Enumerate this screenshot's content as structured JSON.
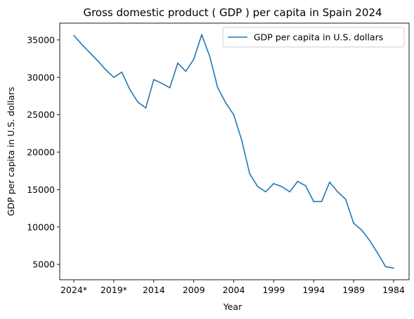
{
  "chart_data": {
    "type": "line",
    "title": "Gross domestic product ( GDP ) per capita in Spain 2024",
    "xlabel": "Year",
    "ylabel": "GDP per capita in U.S. dollars",
    "x": [
      "2024*",
      "2023*",
      "2022*",
      "2021*",
      "2020*",
      "2019*",
      "2018",
      "2017",
      "2016",
      "2015",
      "2014",
      "2013",
      "2012",
      "2011",
      "2010",
      "2009",
      "2008",
      "2007",
      "2006",
      "2005",
      "2004",
      "2003",
      "2002",
      "2001",
      "2000",
      "1999",
      "1998",
      "1997",
      "1996",
      "1995",
      "1994",
      "1993",
      "1992",
      "1991",
      "1990",
      "1989",
      "1988",
      "1987",
      "1986",
      "1985",
      "1984"
    ],
    "series": [
      {
        "name": "GDP per capita in U.S. dollars",
        "color": "#1f77b4",
        "values": [
          35600,
          34400,
          33300,
          32200,
          31000,
          30000,
          30700,
          28400,
          26700,
          25900,
          29700,
          29200,
          28600,
          31900,
          30800,
          32400,
          35700,
          32800,
          28600,
          26600,
          25000,
          21600,
          17100,
          15400,
          14700,
          15800,
          15400,
          14700,
          16100,
          15500,
          13400,
          13400,
          16000,
          14700,
          13700,
          10500,
          9600,
          8200,
          6500,
          4700,
          4500
        ]
      }
    ],
    "xticks": [
      "2024*",
      "2019*",
      "2014",
      "2009",
      "2004",
      "1999",
      "1994",
      "1989",
      "1984"
    ],
    "yticks": [
      5000,
      10000,
      15000,
      20000,
      25000,
      30000,
      35000
    ],
    "ylim": [
      2950,
      37240
    ],
    "grid": false,
    "legend": "upper right"
  }
}
